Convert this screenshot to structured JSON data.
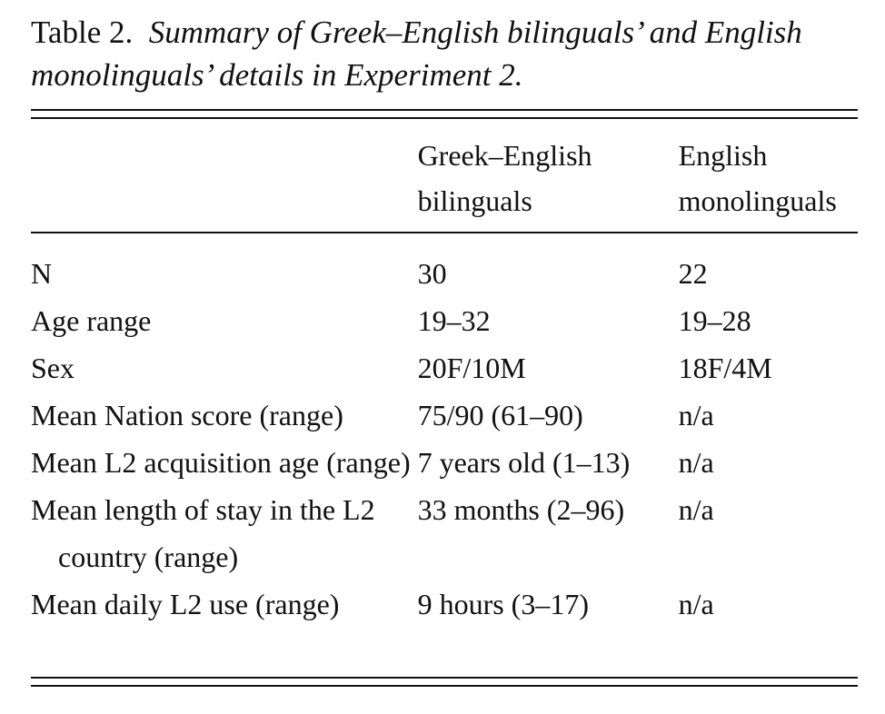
{
  "caption": {
    "label": "Table 2.",
    "text": "Summary of Greek–English bilinguals’ and English monolinguals’ details in Experiment 2."
  },
  "table": {
    "columns": [
      {
        "line1": "",
        "line2": ""
      },
      {
        "line1": "Greek–English",
        "line2": "bilinguals"
      },
      {
        "line1": "English",
        "line2": "monolinguals"
      }
    ],
    "rows": [
      {
        "label": "N",
        "bilinguals": "30",
        "monolinguals": "22"
      },
      {
        "label": "Age range",
        "bilinguals": "19–32",
        "monolinguals": "19–28"
      },
      {
        "label": "Sex",
        "bilinguals": "20F/10M",
        "monolinguals": "18F/4M"
      },
      {
        "label": "Mean Nation score (range)",
        "bilinguals": "75/90 (61–90)",
        "monolinguals": "n/a"
      },
      {
        "label": "Mean L2 acquisition age (range)",
        "bilinguals": "7 years old (1–13)",
        "monolinguals": "n/a"
      },
      {
        "label": "Mean length of stay in the L2 country (range)",
        "bilinguals": "33 months (2–96)",
        "monolinguals": "n/a"
      },
      {
        "label": "Mean daily L2 use (range)",
        "bilinguals": "9 hours (3–17)",
        "monolinguals": "n/a"
      }
    ]
  }
}
